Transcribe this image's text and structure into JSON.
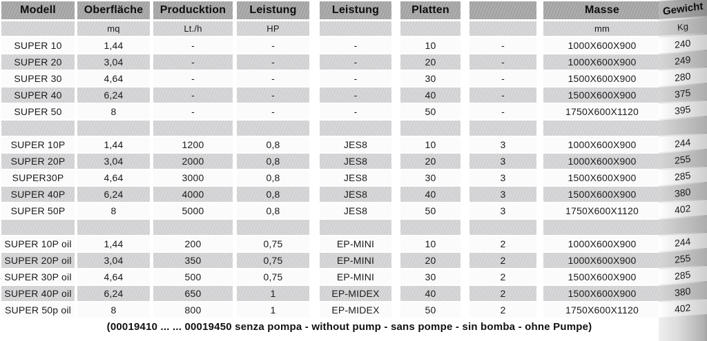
{
  "table": {
    "headers": [
      "Modell",
      "Oberfläche",
      "Producktion",
      "Leistung",
      "Leistung",
      "Platten",
      "",
      "Masse",
      "Gewicht"
    ],
    "units": [
      "",
      "mq",
      "Lt./h",
      "HP",
      "",
      "",
      "",
      "mm",
      "Kg"
    ],
    "rows": [
      {
        "cells": [
          "SUPER 10",
          "1,44",
          "-",
          "-",
          "-",
          "10",
          "-",
          "1000X600X900",
          "240"
        ]
      },
      {
        "cells": [
          "SUPER 20",
          "3,04",
          "-",
          "-",
          "-",
          "20",
          "-",
          "1000X600X900",
          "249"
        ]
      },
      {
        "cells": [
          "SUPER 30",
          "4,64",
          "-",
          "-",
          "-",
          "30",
          "-",
          "1500X600X900",
          "280"
        ]
      },
      {
        "cells": [
          "SUPER 40",
          "6,24",
          "-",
          "-",
          "-",
          "40",
          "-",
          "1500X600X900",
          "375"
        ]
      },
      {
        "cells": [
          "SUPER 50",
          "8",
          "-",
          "-",
          "-",
          "50",
          "-",
          "1750X600X1120",
          "395"
        ]
      },
      {
        "separator": true
      },
      {
        "cells": [
          "SUPER 10P",
          "1,44",
          "1200",
          "0,8",
          "JES8",
          "10",
          "3",
          "1000X600X900",
          "244"
        ]
      },
      {
        "cells": [
          "SUPER 20P",
          "3,04",
          "2000",
          "0,8",
          "JES8",
          "20",
          "3",
          "1000X600X900",
          "255"
        ]
      },
      {
        "cells": [
          "SUPER30P",
          "4,64",
          "3000",
          "0,8",
          "JES8",
          "30",
          "3",
          "1500X600X900",
          "285"
        ]
      },
      {
        "cells": [
          "SUPER 40P",
          "6,24",
          "4000",
          "0,8",
          "JES8",
          "40",
          "3",
          "1500X600X900",
          "380"
        ]
      },
      {
        "cells": [
          "SUPER 50P",
          "8",
          "5000",
          "0,8",
          "JES8",
          "50",
          "3",
          "1750X600X1120",
          "402"
        ]
      },
      {
        "separator": true
      },
      {
        "cells": [
          "SUPER 10P oil",
          "1,44",
          "200",
          "0,75",
          "EP-MINI",
          "10",
          "2",
          "1000X600X900",
          "244"
        ]
      },
      {
        "cells": [
          "SUPER 20P oil",
          "3,04",
          "350",
          "0,75",
          "EP-MINI",
          "20",
          "2",
          "1000X600X900",
          "255"
        ]
      },
      {
        "cells": [
          "SUPER 30P oil",
          "4,64",
          "500",
          "0,75",
          "EP-MINI",
          "30",
          "2",
          "1500X600X900",
          "285"
        ]
      },
      {
        "cells": [
          "SUPER 40P oil",
          "6,24",
          "650",
          "1",
          "EP-MIDEX",
          "40",
          "2",
          "1500X600X900",
          "380"
        ]
      },
      {
        "cells": [
          "SUPER 50p oil",
          "8",
          "800",
          "1",
          "EP-MIDEX",
          "50",
          "2",
          "1750X600X1120",
          "402"
        ]
      }
    ]
  },
  "note": "(00019410 ... ... 00019450 senza pompa - without pump - sans pompe - sin bomba - ohne Pumpe)",
  "colors": {
    "header_band": "#a5a5a5",
    "stripe_gray": "#d4d4d6",
    "stripe_white": "#fbfbfb",
    "text": "#1a1a1a"
  }
}
